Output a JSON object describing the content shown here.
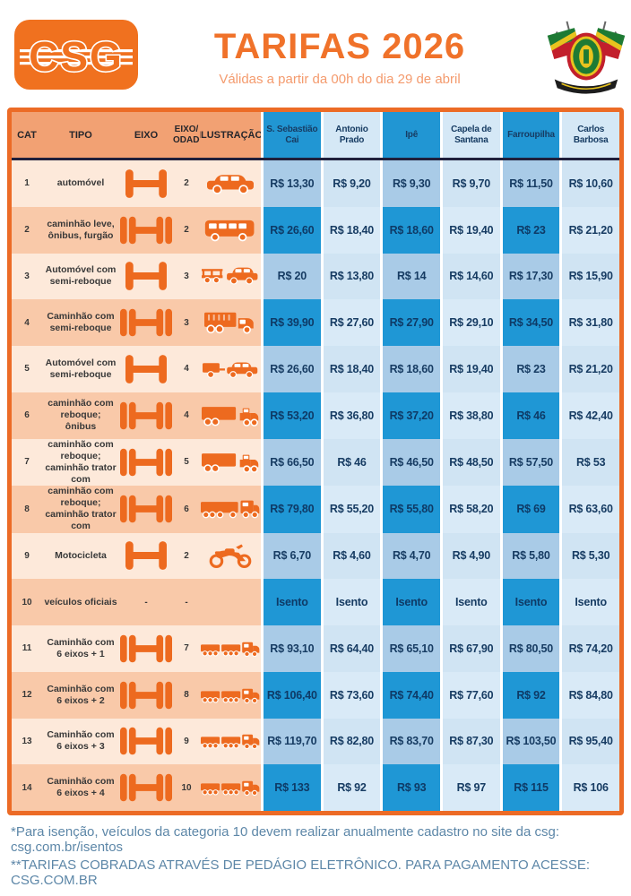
{
  "header": {
    "logo_text": "CSG",
    "title": "TARIFAS 2026",
    "subtitle": "Válidas a partir da 00h do dia 29 de abril",
    "coat_of_arms": "rio-grande-do-sul-coat-of-arms"
  },
  "table": {
    "left_headers": {
      "cat": "CAT",
      "tipo": "TIPO",
      "eixo": "EIXO",
      "eixo_rodado": "EIXO/\nRODADO",
      "ilustracao": "ILUSTRAÇÃO"
    },
    "plazas": [
      {
        "name": "S. Sebastião Cai",
        "tone": "dark"
      },
      {
        "name": "Antonio Prado",
        "tone": "light"
      },
      {
        "name": "Ipê",
        "tone": "dark"
      },
      {
        "name": "Capela de Santana",
        "tone": "light"
      },
      {
        "name": "Farroupilha",
        "tone": "dark"
      },
      {
        "name": "Carlos Barbosa",
        "tone": "light"
      }
    ],
    "rows": [
      {
        "cat": "1",
        "tipo": "automóvel",
        "axle_icon": "axle-2-icon",
        "rodado": "2",
        "vehicle_icon": "car-icon",
        "prices": [
          "R$ 13,30",
          "R$ 9,20",
          "R$ 9,30",
          "R$ 9,70",
          "R$ 11,50",
          "R$ 10,60"
        ]
      },
      {
        "cat": "2",
        "tipo": "caminhão leve, ônibus, furgão",
        "axle_icon": "axle-4-icon",
        "rodado": "2",
        "vehicle_icon": "bus-icon",
        "prices": [
          "R$ 26,60",
          "R$ 18,40",
          "R$ 18,60",
          "R$ 19,40",
          "R$ 23",
          "R$ 21,20"
        ]
      },
      {
        "cat": "3",
        "tipo": "Automóvel com semi-reboque",
        "axle_icon": "axle-2-icon",
        "rodado": "3",
        "vehicle_icon": "trailer-car-icon",
        "prices": [
          "R$ 20",
          "R$ 13,80",
          "R$ 14",
          "R$ 14,60",
          "R$ 17,30",
          "R$ 15,90"
        ]
      },
      {
        "cat": "4",
        "tipo": "Caminhão com semi-reboque",
        "axle_icon": "axle-4-icon",
        "rodado": "3",
        "vehicle_icon": "truck-icon",
        "prices": [
          "R$ 39,90",
          "R$ 27,60",
          "R$ 27,90",
          "R$ 29,10",
          "R$ 34,50",
          "R$ 31,80"
        ]
      },
      {
        "cat": "5",
        "tipo": "Automóvel com semi-reboque",
        "axle_icon": "axle-2-icon",
        "rodado": "4",
        "vehicle_icon": "box-trailer-car-icon",
        "prices": [
          "R$ 26,60",
          "R$ 18,40",
          "R$ 18,60",
          "R$ 19,40",
          "R$ 23",
          "R$ 21,20"
        ]
      },
      {
        "cat": "6",
        "tipo": "caminhão com reboque; ônibus",
        "axle_icon": "axle-4-icon",
        "rodado": "4",
        "vehicle_icon": "truck-trailer-icon",
        "prices": [
          "R$ 53,20",
          "R$ 36,80",
          "R$ 37,20",
          "R$ 38,80",
          "R$ 46",
          "R$ 42,40"
        ]
      },
      {
        "cat": "7",
        "tipo": "caminhão com reboque; caminhão trator com",
        "axle_icon": "axle-4-icon",
        "rodado": "5",
        "vehicle_icon": "truck-trailer-icon",
        "prices": [
          "R$ 66,50",
          "R$ 46",
          "R$ 46,50",
          "R$ 48,50",
          "R$ 57,50",
          "R$ 53"
        ]
      },
      {
        "cat": "8",
        "tipo": "caminhão com reboque; caminhão trator com",
        "axle_icon": "axle-4-icon",
        "rodado": "6",
        "vehicle_icon": "truck-long-icon",
        "prices": [
          "R$ 79,80",
          "R$ 55,20",
          "R$ 55,80",
          "R$ 58,20",
          "R$ 69",
          "R$ 63,60"
        ]
      },
      {
        "cat": "9",
        "tipo": "Motocicleta",
        "axle_icon": "axle-2-icon",
        "rodado": "2",
        "vehicle_icon": "motorcycle-icon",
        "prices": [
          "R$ 6,70",
          "R$ 4,60",
          "R$ 4,70",
          "R$ 4,90",
          "R$ 5,80",
          "R$ 5,30"
        ]
      },
      {
        "cat": "10",
        "tipo": "veículos oficiais",
        "axle_icon": null,
        "eixo_text": "-",
        "rodado": "-",
        "vehicle_icon": null,
        "prices": [
          "Isento",
          "Isento",
          "Isento",
          "Isento",
          "Isento",
          "Isento"
        ]
      },
      {
        "cat": "11",
        "tipo": "Caminhão com 6 eixos + 1",
        "axle_icon": "axle-4-icon",
        "rodado": "7",
        "vehicle_icon": "road-train-icon",
        "prices": [
          "R$ 93,10",
          "R$ 64,40",
          "R$ 65,10",
          "R$ 67,90",
          "R$ 80,50",
          "R$ 74,20"
        ]
      },
      {
        "cat": "12",
        "tipo": "Caminhão com 6 eixos + 2",
        "axle_icon": "axle-4-icon",
        "rodado": "8",
        "vehicle_icon": "road-train-icon",
        "prices": [
          "R$ 106,40",
          "R$ 73,60",
          "R$ 74,40",
          "R$ 77,60",
          "R$ 92",
          "R$ 84,80"
        ]
      },
      {
        "cat": "13",
        "tipo": "Caminhão com 6 eixos + 3",
        "axle_icon": "axle-4-icon",
        "rodado": "9",
        "vehicle_icon": "road-train-icon",
        "prices": [
          "R$ 119,70",
          "R$ 82,80",
          "R$ 83,70",
          "R$ 87,30",
          "R$ 103,50",
          "R$ 95,40"
        ]
      },
      {
        "cat": "14",
        "tipo": "Caminhão com 6 eixos + 4",
        "axle_icon": "axle-4-icon",
        "rodado": "10",
        "vehicle_icon": "road-train-icon",
        "prices": [
          "R$ 133",
          "R$ 92",
          "R$ 93",
          "R$ 97",
          "R$ 115",
          "R$ 106"
        ]
      }
    ]
  },
  "footer": {
    "note1": "*Para isenção, veículos da categoria 10 devem realizar anualmente cadastro no site da csg: csg.com.br/isentos",
    "note2": "**TARIFAS COBRADAS ATRAVÉS DE PEDÁGIO ELETRÔNICO. PARA PAGAMENTO ACESSE: CSG.COM.BR"
  },
  "colors": {
    "accent_orange": "#ec6b26",
    "title_orange": "#f0722a",
    "subtitle_orange": "#f49b6e",
    "header_salmon": "#f2a173",
    "peach_light": "#fde9da",
    "peach_dark": "#f9c9a9",
    "blue_strong": "#1f97d5",
    "blue_medium": "#a9cbe7",
    "blue_pale": "#d5e8f6",
    "navy_text": "#173c63",
    "footer_blue": "#5d87a8",
    "icon_orange": "#ed6a1f"
  }
}
